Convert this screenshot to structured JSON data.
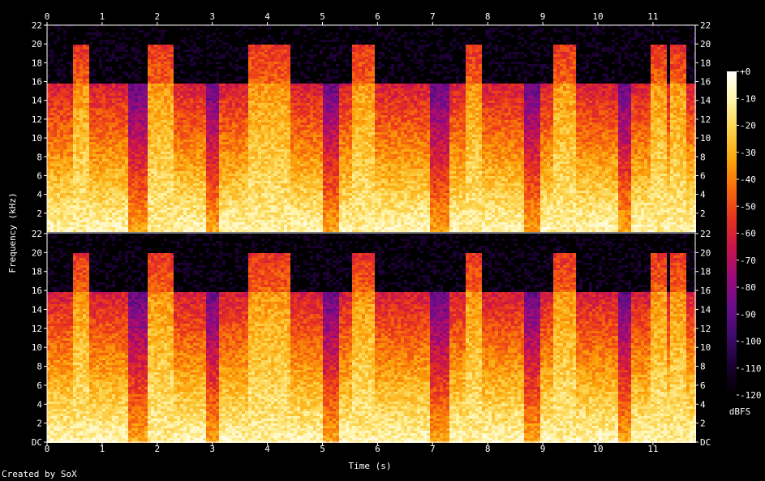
{
  "credit": "Created by SoX",
  "chart_data": {
    "type": "heatmap",
    "title": "",
    "xlabel": "Time (s)",
    "ylabel": "Frequency (kHz)",
    "xlim": [
      0,
      11.8
    ],
    "ylim": [
      0,
      22
    ],
    "x_ticks": [
      "0",
      "1",
      "2",
      "3",
      "4",
      "5",
      "6",
      "7",
      "8",
      "9",
      "10",
      "11"
    ],
    "y_ticks_top_channel": [
      "2",
      "4",
      "6",
      "8",
      "10",
      "12",
      "14",
      "16",
      "18",
      "20",
      "22"
    ],
    "y_ticks_bottom_channel": [
      "DC",
      "2",
      "4",
      "6",
      "8",
      "10",
      "12",
      "14",
      "16",
      "18",
      "20",
      "22"
    ],
    "channels": 2,
    "colorbar": {
      "label": "dBFS",
      "ticks": [
        "+0",
        "-10",
        "-20",
        "-30",
        "-40",
        "-50",
        "-60",
        "-70",
        "-80",
        "-90",
        "-100",
        "-110",
        "-120"
      ],
      "range": [
        -120,
        0
      ],
      "colors": [
        "#000000",
        "#1a0030",
        "#3d0a6b",
        "#6a0d8a",
        "#9a0a7a",
        "#c8144d",
        "#e8321e",
        "#f76a0c",
        "#fca50a",
        "#fcd24a",
        "#fff4a8",
        "#ffffff"
      ]
    },
    "spectral_bands_khz": {
      "low_energy_cutoff": 16,
      "burst_cutoff": 20
    },
    "energy_bursts_s": [
      [
        0.45,
        0.72
      ],
      [
        1.82,
        2.25
      ],
      [
        3.65,
        4.0
      ],
      [
        4.0,
        4.4
      ],
      [
        5.5,
        5.9
      ],
      [
        7.55,
        7.85
      ],
      [
        9.15,
        9.55
      ],
      [
        10.95,
        11.25
      ],
      [
        11.3,
        11.55
      ]
    ],
    "quiet_gaps_s": [
      [
        1.45,
        1.8
      ],
      [
        2.85,
        3.1
      ],
      [
        4.95,
        5.3
      ],
      [
        6.95,
        7.3
      ],
      [
        8.65,
        8.95
      ],
      [
        10.35,
        10.6
      ]
    ]
  }
}
